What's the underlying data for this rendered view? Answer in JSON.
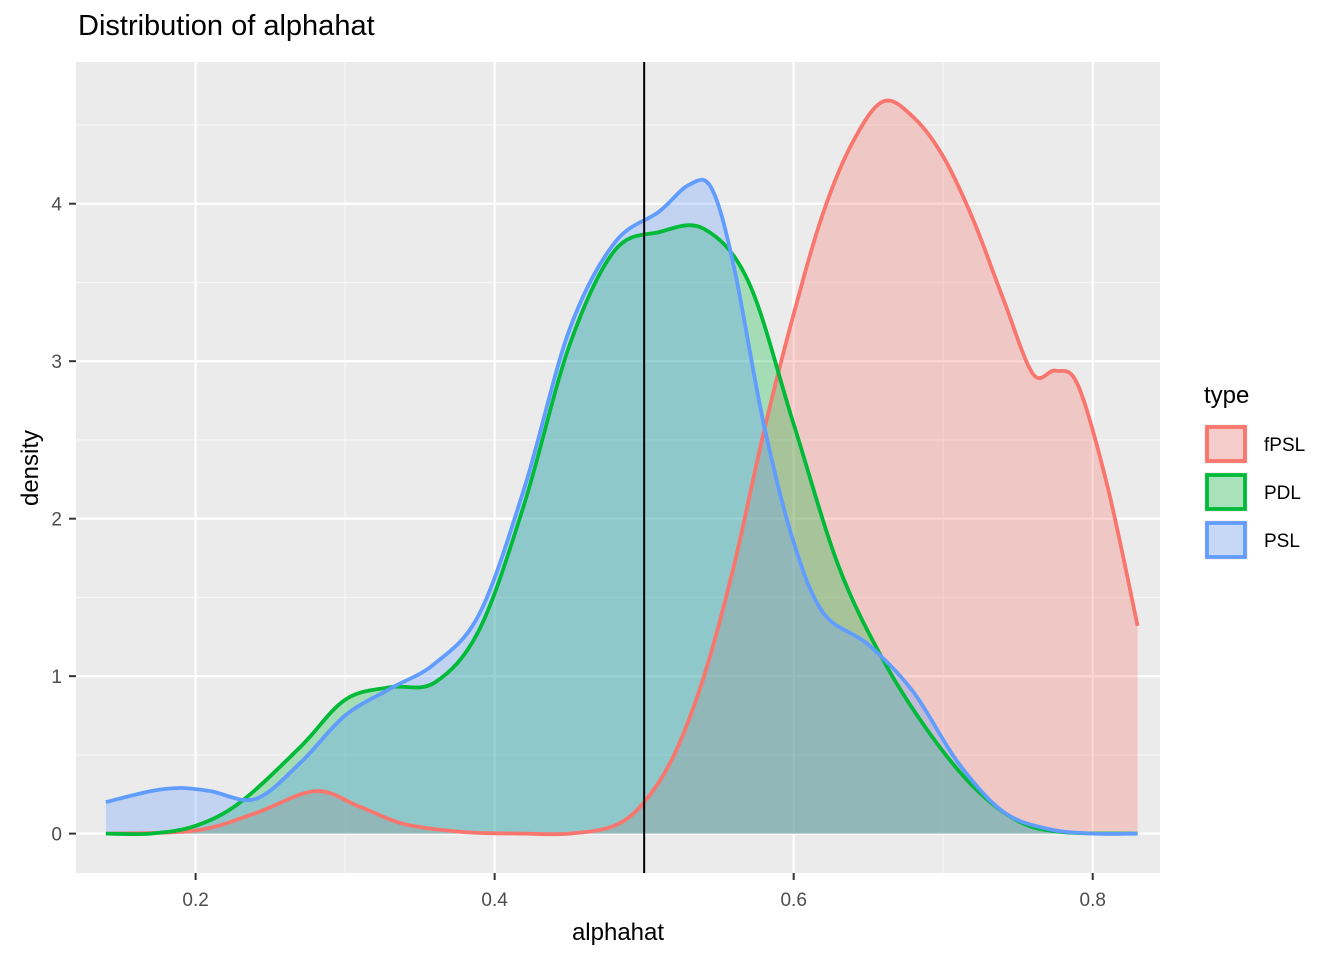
{
  "chart_data": {
    "type": "area",
    "title": "Distribution of alphahat",
    "xlabel": "alphahat",
    "ylabel": "density",
    "xlim": [
      0.12,
      0.845
    ],
    "ylim": [
      -0.25,
      4.9
    ],
    "xticks": [
      0.2,
      0.4,
      0.6,
      0.8
    ],
    "xtick_labels": [
      "0.2",
      "0.4",
      "0.6",
      "0.8"
    ],
    "yticks": [
      0,
      1,
      2,
      3,
      4
    ],
    "ytick_labels": [
      "0",
      "1",
      "2",
      "3",
      "4"
    ],
    "vline": 0.5,
    "grid": true,
    "legend": {
      "title": "type",
      "placement": "right"
    },
    "series": [
      {
        "name": "fPSL",
        "line_color": "#F8766D",
        "fill_color": "#F8766D",
        "points": [
          [
            0.14,
            0.0
          ],
          [
            0.2,
            0.02
          ],
          [
            0.24,
            0.13
          ],
          [
            0.28,
            0.27
          ],
          [
            0.31,
            0.17
          ],
          [
            0.34,
            0.06
          ],
          [
            0.38,
            0.01
          ],
          [
            0.42,
            0.0
          ],
          [
            0.45,
            0.0
          ],
          [
            0.48,
            0.05
          ],
          [
            0.5,
            0.2
          ],
          [
            0.52,
            0.5
          ],
          [
            0.54,
            1.0
          ],
          [
            0.56,
            1.7
          ],
          [
            0.58,
            2.55
          ],
          [
            0.6,
            3.3
          ],
          [
            0.62,
            3.95
          ],
          [
            0.64,
            4.4
          ],
          [
            0.66,
            4.65
          ],
          [
            0.68,
            4.55
          ],
          [
            0.7,
            4.3
          ],
          [
            0.72,
            3.9
          ],
          [
            0.74,
            3.4
          ],
          [
            0.76,
            2.92
          ],
          [
            0.775,
            2.94
          ],
          [
            0.79,
            2.85
          ],
          [
            0.81,
            2.2
          ],
          [
            0.83,
            1.32
          ]
        ]
      },
      {
        "name": "PDL",
        "line_color": "#00BA38",
        "fill_color": "#00BA38",
        "points": [
          [
            0.14,
            0.0
          ],
          [
            0.17,
            0.0
          ],
          [
            0.2,
            0.05
          ],
          [
            0.23,
            0.2
          ],
          [
            0.27,
            0.55
          ],
          [
            0.3,
            0.85
          ],
          [
            0.33,
            0.93
          ],
          [
            0.36,
            0.96
          ],
          [
            0.39,
            1.3
          ],
          [
            0.42,
            2.1
          ],
          [
            0.45,
            3.1
          ],
          [
            0.48,
            3.7
          ],
          [
            0.51,
            3.82
          ],
          [
            0.54,
            3.84
          ],
          [
            0.57,
            3.5
          ],
          [
            0.6,
            2.6
          ],
          [
            0.63,
            1.7
          ],
          [
            0.66,
            1.1
          ],
          [
            0.69,
            0.65
          ],
          [
            0.72,
            0.3
          ],
          [
            0.75,
            0.08
          ],
          [
            0.78,
            0.01
          ],
          [
            0.83,
            0.0
          ]
        ]
      },
      {
        "name": "PSL",
        "line_color": "#619CFF",
        "fill_color": "#619CFF",
        "points": [
          [
            0.14,
            0.2
          ],
          [
            0.17,
            0.27
          ],
          [
            0.19,
            0.29
          ],
          [
            0.21,
            0.27
          ],
          [
            0.24,
            0.22
          ],
          [
            0.27,
            0.45
          ],
          [
            0.3,
            0.75
          ],
          [
            0.33,
            0.92
          ],
          [
            0.36,
            1.08
          ],
          [
            0.39,
            1.4
          ],
          [
            0.42,
            2.2
          ],
          [
            0.45,
            3.2
          ],
          [
            0.48,
            3.75
          ],
          [
            0.51,
            3.95
          ],
          [
            0.53,
            4.12
          ],
          [
            0.545,
            4.1
          ],
          [
            0.56,
            3.6
          ],
          [
            0.58,
            2.6
          ],
          [
            0.6,
            1.85
          ],
          [
            0.62,
            1.4
          ],
          [
            0.65,
            1.2
          ],
          [
            0.68,
            0.9
          ],
          [
            0.71,
            0.45
          ],
          [
            0.74,
            0.14
          ],
          [
            0.77,
            0.03
          ],
          [
            0.8,
            0.0
          ],
          [
            0.83,
            0.0
          ]
        ]
      }
    ]
  }
}
